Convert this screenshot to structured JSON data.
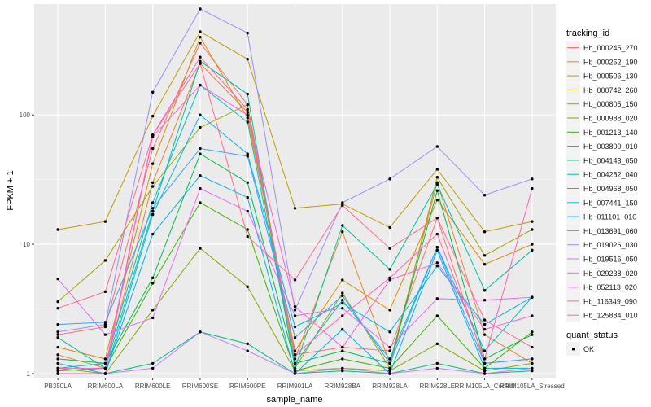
{
  "chart_data": {
    "type": "line",
    "xlabel": "sample_name",
    "ylabel": "FPKM + 1",
    "y_scale": "log10",
    "ylim": [
      0.93,
      720
    ],
    "y_ticks": [
      {
        "value": 1,
        "label": "1"
      },
      {
        "value": 10,
        "label": "10"
      },
      {
        "value": 100,
        "label": "100"
      }
    ],
    "categories": [
      "PB350LA",
      "RRIM600LA",
      "RRIM600LE",
      "RRIM600SE",
      "RRIM600PE",
      "RRIM901LA",
      "RRIM928BA",
      "RRIM928LA",
      "RRIM928LE",
      "RRIM105LA_Control",
      "RRIM105LA_Stressed"
    ],
    "legend_title": "tracking_id",
    "legend_position": "right",
    "grid": true,
    "panel_background": "#EBEBEB",
    "series": [
      {
        "name": "Hb_000245_270",
        "color": "#F8766D",
        "values": [
          2.0,
          2.3,
          55,
          360,
          120,
          1.4,
          1.6,
          1.5,
          16.0,
          1.2,
          1.3
        ]
      },
      {
        "name": "Hb_000252_190",
        "color": "#EA8331",
        "values": [
          1.4,
          1.1,
          30,
          250,
          105,
          1.3,
          12.5,
          1.2,
          30.0,
          2.0,
          1.2
        ]
      },
      {
        "name": "Hb_000506_130",
        "color": "#D89000",
        "values": [
          1.6,
          1.3,
          42,
          400,
          95,
          1.5,
          5.3,
          3.1,
          22.0,
          7.0,
          10.0
        ]
      },
      {
        "name": "Hb_000742_260",
        "color": "#C09B00",
        "values": [
          13.0,
          15.0,
          98,
          440,
          270,
          19.0,
          20.5,
          13.5,
          38.0,
          12.5,
          15.0
        ]
      },
      {
        "name": "Hb_000805_150",
        "color": "#A3A500",
        "values": [
          3.6,
          7.5,
          28,
          80,
          120,
          1.1,
          4.2,
          1.1,
          33.0,
          8.2,
          13.0
        ]
      },
      {
        "name": "Hb_000988_020",
        "color": "#7CAE00",
        "values": [
          1.1,
          1.0,
          3.1,
          9.3,
          4.7,
          1.05,
          1.1,
          1.05,
          1.7,
          1.05,
          1.2
        ]
      },
      {
        "name": "Hb_001213_140",
        "color": "#39B600",
        "values": [
          1.05,
          1.1,
          5.0,
          21.0,
          13.0,
          1.05,
          1.3,
          1.1,
          2.8,
          1.1,
          2.1
        ]
      },
      {
        "name": "Hb_003800_010",
        "color": "#00BB4E",
        "values": [
          1.3,
          1.2,
          5.5,
          50,
          30,
          1.2,
          1.5,
          1.2,
          26.0,
          1.3,
          2.0
        ]
      },
      {
        "name": "Hb_004143_050",
        "color": "#00BF7D",
        "values": [
          1.0,
          1.0,
          1.2,
          2.1,
          1.7,
          1.0,
          1.05,
          1.0,
          1.2,
          1.0,
          1.05
        ]
      },
      {
        "name": "Hb_004282_040",
        "color": "#00C1A3",
        "values": [
          1.9,
          1.1,
          18,
          260,
          145,
          1.1,
          14.0,
          6.4,
          29.0,
          4.4,
          9.0
        ]
      },
      {
        "name": "Hb_004968_050",
        "color": "#00BFC4",
        "values": [
          1.1,
          1.2,
          21,
          170,
          88,
          1.2,
          3.7,
          1.3,
          9.5,
          1.5,
          3.9
        ]
      },
      {
        "name": "Hb_007441_150",
        "color": "#00BAE0",
        "values": [
          1.2,
          1.0,
          17,
          100,
          50,
          2.3,
          3.5,
          2.1,
          6.8,
          2.4,
          3.9
        ]
      },
      {
        "name": "Hb_011101_010",
        "color": "#00B0F6",
        "values": [
          1.0,
          1.0,
          12,
          34,
          23,
          1.0,
          2.2,
          1.0,
          9.0,
          1.1,
          1.1
        ]
      },
      {
        "name": "Hb_013691_060",
        "color": "#35A2FF",
        "values": [
          2.4,
          2.5,
          19,
          55,
          48,
          1.9,
          4.0,
          1.2,
          9.5,
          1.2,
          1.3
        ]
      },
      {
        "name": "Hb_019026_030",
        "color": "#9590FF",
        "values": [
          2.1,
          2.4,
          150,
          660,
          430,
          3.1,
          21.0,
          32.0,
          57.0,
          24.0,
          32.0
        ]
      },
      {
        "name": "Hb_019516_050",
        "color": "#C77CFF",
        "values": [
          1.0,
          1.0,
          1.1,
          2.1,
          1.5,
          1.0,
          1.1,
          1.0,
          1.1,
          1.0,
          1.1
        ]
      },
      {
        "name": "Hb_029238_020",
        "color": "#E76BF3",
        "values": [
          5.4,
          2.0,
          2.7,
          27,
          18,
          2.8,
          3.2,
          1.6,
          3.8,
          3.7,
          3.9
        ]
      },
      {
        "name": "Hb_052113_020",
        "color": "#FA62DB",
        "values": [
          1.1,
          1.1,
          68,
          170,
          100,
          3.3,
          1.6,
          5.3,
          7.2,
          2.2,
          2.8
        ]
      },
      {
        "name": "Hb_116349_090",
        "color": "#FF62BC",
        "values": [
          1.0,
          1.0,
          70,
          280,
          110,
          1.4,
          2.8,
          5.5,
          12.0,
          1.3,
          27.0
        ]
      },
      {
        "name": "Hb_125884_010",
        "color": "#FF6C91",
        "values": [
          3.2,
          4.3,
          70,
          250,
          11.5,
          5.3,
          20.0,
          9.3,
          16.0,
          2.6,
          1.6
        ]
      }
    ],
    "points_legend": {
      "title": "quant_status",
      "label": "OK"
    }
  }
}
